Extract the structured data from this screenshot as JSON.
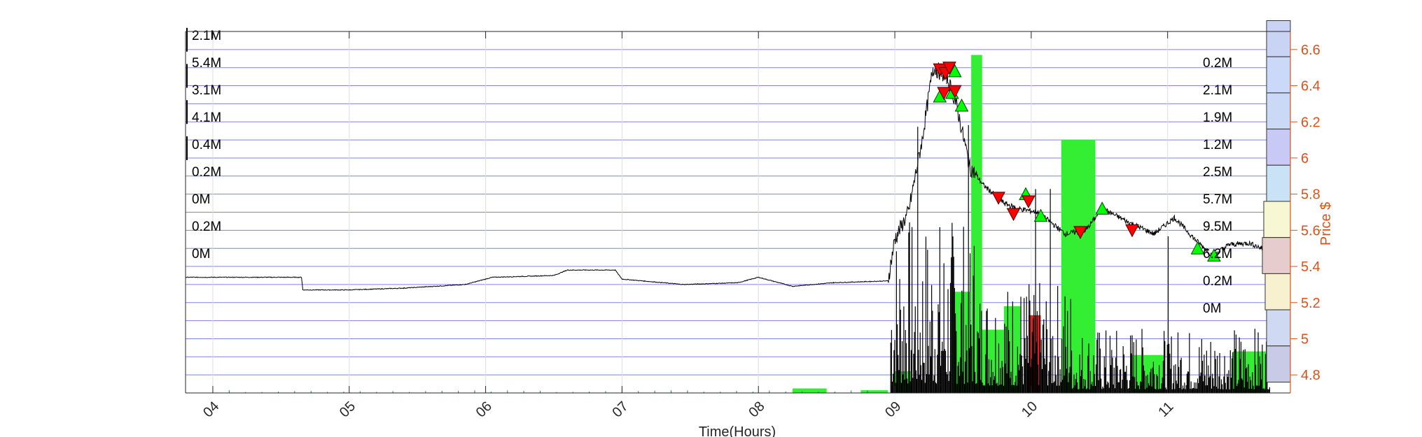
{
  "colors": {
    "price_axis": "#d95319",
    "grid": "#8080e6",
    "buy": "#00ff00",
    "sell": "#ff0000",
    "bar": "#000000",
    "volume_fill": "#33ee33",
    "volume_fill_red": "#dd2222"
  },
  "chart_data": {
    "type": "bar",
    "xlabel": "Time(Hours)",
    "ylabel": "Price $",
    "x_ticks": [
      "04",
      "05",
      "06",
      "07",
      "08",
      "09",
      "10",
      "11"
    ],
    "xlim": [
      3.8,
      11.9
    ],
    "ylim": [
      4.7,
      6.7
    ],
    "y_ticks": [
      "6.6",
      "6.4",
      "6.2",
      "6",
      "5.8",
      "5.6",
      "5.4",
      "5.2",
      "5",
      "4.8"
    ],
    "grid": "on",
    "left_volume_labels": [
      "2.1M",
      "5.4M",
      "3.1M",
      "4.1M",
      "0.4M",
      "0.2M",
      "0M",
      "0.2M",
      "0M"
    ],
    "right_volume_labels": [
      "0.2M",
      "2.1M",
      "1.9M",
      "1.2M",
      "2.5M",
      "5.7M",
      "9.5M",
      "6.2M",
      "0.2M",
      "0M"
    ],
    "price_series": [
      {
        "t": 3.8,
        "p": 5.34
      },
      {
        "t": 4.65,
        "p": 5.34
      },
      {
        "t": 4.66,
        "p": 5.27
      },
      {
        "t": 5.0,
        "p": 5.27
      },
      {
        "t": 5.4,
        "p": 5.28
      },
      {
        "t": 5.85,
        "p": 5.3
      },
      {
        "t": 6.05,
        "p": 5.34
      },
      {
        "t": 6.5,
        "p": 5.35
      },
      {
        "t": 6.6,
        "p": 5.38
      },
      {
        "t": 6.95,
        "p": 5.38
      },
      {
        "t": 7.0,
        "p": 5.33
      },
      {
        "t": 7.45,
        "p": 5.3
      },
      {
        "t": 7.85,
        "p": 5.31
      },
      {
        "t": 8.0,
        "p": 5.34
      },
      {
        "t": 8.25,
        "p": 5.29
      },
      {
        "t": 8.55,
        "p": 5.31
      },
      {
        "t": 8.95,
        "p": 5.32
      },
      {
        "t": 9.0,
        "p": 5.55
      },
      {
        "t": 9.1,
        "p": 5.7
      },
      {
        "t": 9.2,
        "p": 6.1
      },
      {
        "t": 9.28,
        "p": 6.5
      },
      {
        "t": 9.38,
        "p": 6.45
      },
      {
        "t": 9.45,
        "p": 6.3
      },
      {
        "t": 9.55,
        "p": 5.95
      },
      {
        "t": 9.65,
        "p": 5.85
      },
      {
        "t": 9.8,
        "p": 5.75
      },
      {
        "t": 9.9,
        "p": 5.72
      },
      {
        "t": 10.05,
        "p": 5.7
      },
      {
        "t": 10.25,
        "p": 5.58
      },
      {
        "t": 10.4,
        "p": 5.6
      },
      {
        "t": 10.52,
        "p": 5.72
      },
      {
        "t": 10.7,
        "p": 5.65
      },
      {
        "t": 10.9,
        "p": 5.58
      },
      {
        "t": 11.05,
        "p": 5.67
      },
      {
        "t": 11.2,
        "p": 5.55
      },
      {
        "t": 11.33,
        "p": 5.46
      },
      {
        "t": 11.45,
        "p": 5.52
      },
      {
        "t": 11.6,
        "p": 5.53
      },
      {
        "t": 11.72,
        "p": 5.49
      }
    ],
    "buy_markers": [
      {
        "t": 9.33,
        "p": 6.34
      },
      {
        "t": 9.42,
        "p": 6.36
      },
      {
        "t": 9.44,
        "p": 6.48
      },
      {
        "t": 9.49,
        "p": 6.29
      },
      {
        "t": 9.96,
        "p": 5.8
      },
      {
        "t": 10.07,
        "p": 5.68
      },
      {
        "t": 10.52,
        "p": 5.72
      },
      {
        "t": 11.22,
        "p": 5.5
      },
      {
        "t": 11.34,
        "p": 5.46
      }
    ],
    "sell_markers": [
      {
        "t": 9.33,
        "p": 6.49
      },
      {
        "t": 9.37,
        "p": 6.47
      },
      {
        "t": 9.4,
        "p": 6.5
      },
      {
        "t": 9.36,
        "p": 6.36
      },
      {
        "t": 9.44,
        "p": 6.37
      },
      {
        "t": 9.76,
        "p": 5.78
      },
      {
        "t": 9.87,
        "p": 5.69
      },
      {
        "t": 9.98,
        "p": 5.76
      },
      {
        "t": 10.36,
        "p": 5.59
      },
      {
        "t": 10.74,
        "p": 5.6
      }
    ],
    "volume_bins": [
      {
        "t0": 8.25,
        "t1": 8.5,
        "top": 4.725
      },
      {
        "t0": 8.75,
        "t1": 8.95,
        "top": 4.715
      },
      {
        "t0": 9.0,
        "t1": 9.12,
        "top": 4.82
      },
      {
        "t0": 9.42,
        "t1": 9.55,
        "top": 5.26
      },
      {
        "t0": 9.56,
        "t1": 9.64,
        "top": 6.57
      },
      {
        "t0": 9.64,
        "t1": 9.8,
        "top": 5.05
      },
      {
        "t0": 9.8,
        "t1": 9.92,
        "top": 5.18
      },
      {
        "t0": 10.22,
        "t1": 10.47,
        "top": 6.1
      },
      {
        "t0": 10.73,
        "t1": 10.98,
        "top": 4.91
      },
      {
        "t0": 11.48,
        "t1": 11.72,
        "top": 4.93
      }
    ],
    "volume_red_bins": [
      {
        "t0": 9.98,
        "t1": 10.07,
        "top": 5.13
      }
    ]
  }
}
